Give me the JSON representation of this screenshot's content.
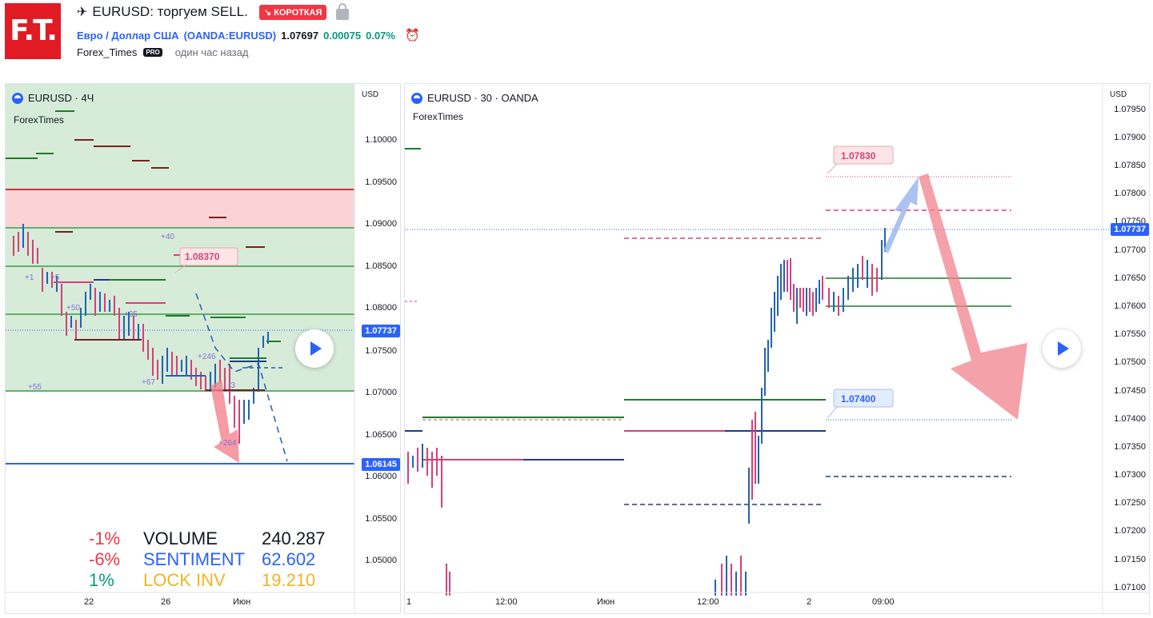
{
  "header": {
    "logo_text": "F.T.",
    "title": "EURUSD: торгуем SELL.",
    "badge": "↘ КОРОТКАЯ",
    "symbol_name": "Евро / Доллар США",
    "symbol_code": "(OANDA:EURUSD)",
    "price": "1.07697",
    "change": "0.00075",
    "change_pct": "0.07%",
    "author": "Forex_Times",
    "pro": "PRO",
    "published": "один час назад"
  },
  "left_chart": {
    "legend": "EURUSD · 4Ч",
    "sub": "ForexTimes",
    "currency": "USD",
    "y_ticks": [
      "1.10000",
      "1.09500",
      "1.09000",
      "1.08500",
      "1.08000",
      "1.07500",
      "1.07000",
      "1.06500",
      "1.06000",
      "1.05500",
      "1.05000"
    ],
    "x_ticks": [
      "22",
      "26",
      "Июн"
    ],
    "last_price": "1.07737",
    "low_price": "1.06145",
    "target_label": "1.08370",
    "small_labels": [
      "+40",
      "+1",
      "+5",
      "+50",
      "+35",
      "+246",
      "+67",
      "+55",
      "+264",
      "-3"
    ],
    "stats": [
      {
        "pct": "-1%",
        "name": "VOLUME",
        "value": "240.287",
        "pct_color": "#f23645",
        "name_color": "#131722"
      },
      {
        "pct": "-6%",
        "name": "SENTIMENT",
        "value": "62.602",
        "pct_color": "#f23645",
        "name_color": "#2962ff"
      },
      {
        "pct": "1%",
        "name": "LOCK INV",
        "value": "19.210",
        "pct_color": "#089981",
        "name_color": "#f0b429"
      }
    ]
  },
  "right_chart": {
    "legend": "EURUSD · 30 · OANDA",
    "sub": "ForexTimes",
    "currency": "USD",
    "y_ticks": [
      "1.07950",
      "1.07900",
      "1.07850",
      "1.07800",
      "1.07750",
      "1.07700",
      "1.07650",
      "1.07600",
      "1.07550",
      "1.07500",
      "1.07450",
      "1.07400",
      "1.07350",
      "1.07300",
      "1.07250",
      "1.07200",
      "1.07150",
      "1.07100"
    ],
    "x_ticks": [
      "1",
      "12:00",
      "Июн",
      "12:00",
      "2",
      "09:00"
    ],
    "last_price": "1.07737",
    "upper_label": "1.07830",
    "lower_label": "1.07400"
  },
  "colors": {
    "accent": "#2962ff",
    "red": "#f23645",
    "green": "#089981",
    "zone_green": "#d6ecd9",
    "zone_red": "#f9d3d6"
  }
}
